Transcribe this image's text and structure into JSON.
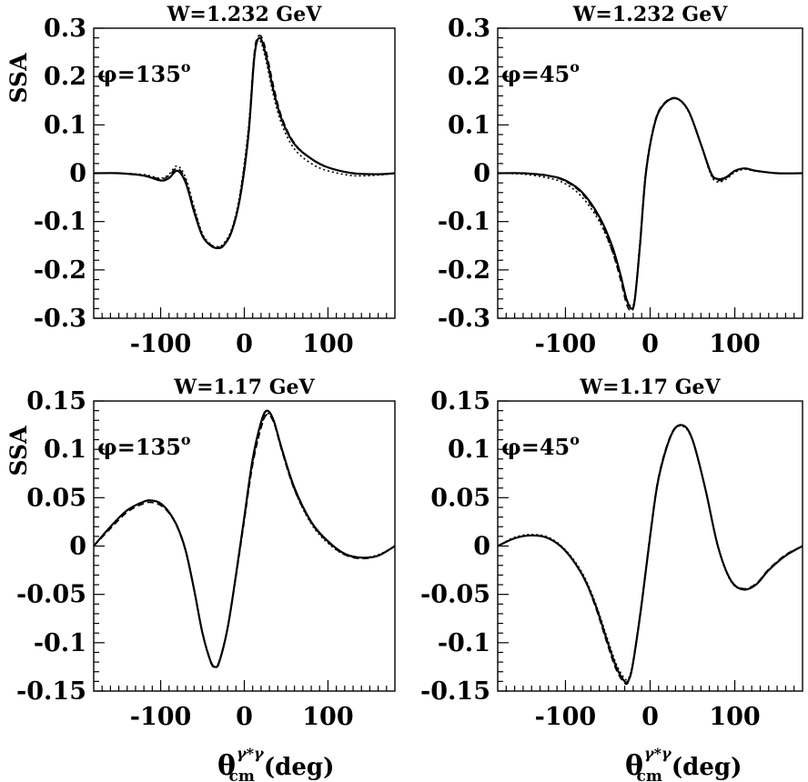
{
  "chart_data": [
    {
      "type": "line",
      "title": "W=1.232 GeV",
      "ylabel": "SSA",
      "xlabel": "",
      "annotation": "φ=135°",
      "xlim": [
        -180,
        180
      ],
      "ylim": [
        -0.3,
        0.3
      ],
      "xticks": [
        -100,
        0,
        100
      ],
      "xtick_labels": [
        "-100",
        "0",
        "100"
      ],
      "yticks": [
        -0.3,
        -0.2,
        -0.1,
        0,
        0.1,
        0.2,
        0.3
      ],
      "ytick_labels": [
        "-0.3",
        "-0.2",
        "-0.1",
        "0",
        "0.1",
        "0.2",
        "0.3"
      ],
      "series": [
        {
          "style": "solid",
          "x": [
            -180,
            -150,
            -120,
            -100,
            -90,
            -80,
            -70,
            -60,
            -50,
            -40,
            -32,
            -25,
            -15,
            -5,
            5,
            12,
            18,
            25,
            35,
            45,
            60,
            80,
            100,
            130,
            160,
            180
          ],
          "y": [
            0.0,
            0.0,
            -0.005,
            -0.015,
            -0.01,
            0.005,
            -0.02,
            -0.08,
            -0.13,
            -0.15,
            -0.155,
            -0.15,
            -0.12,
            -0.05,
            0.08,
            0.24,
            0.28,
            0.25,
            0.17,
            0.11,
            0.06,
            0.03,
            0.012,
            0.0,
            -0.002,
            0.0
          ]
        },
        {
          "style": "dashed",
          "x": [
            -180,
            -150,
            -120,
            -100,
            -90,
            -80,
            -70,
            -60,
            -50,
            -40,
            -32,
            -25,
            -15,
            -5,
            5,
            12,
            18,
            25,
            35,
            45,
            60,
            80,
            100,
            130,
            160,
            180
          ],
          "y": [
            0.0,
            0.0,
            -0.004,
            -0.012,
            -0.005,
            0.01,
            -0.015,
            -0.075,
            -0.128,
            -0.148,
            -0.153,
            -0.148,
            -0.118,
            -0.045,
            0.09,
            0.25,
            0.285,
            0.26,
            0.18,
            0.115,
            0.062,
            0.03,
            0.012,
            0.0,
            -0.002,
            0.0
          ]
        },
        {
          "style": "dotted",
          "x": [
            -180,
            -150,
            -120,
            -100,
            -90,
            -80,
            -70,
            -60,
            -50,
            -40,
            -32,
            -25,
            -15,
            -5,
            5,
            12,
            18,
            25,
            35,
            45,
            60,
            80,
            100,
            130,
            160,
            180
          ],
          "y": [
            0.0,
            0.0,
            -0.003,
            -0.01,
            -0.002,
            0.015,
            -0.01,
            -0.07,
            -0.125,
            -0.147,
            -0.152,
            -0.146,
            -0.115,
            -0.04,
            0.095,
            0.245,
            0.275,
            0.24,
            0.16,
            0.1,
            0.05,
            0.02,
            0.005,
            -0.005,
            -0.004,
            0.0
          ]
        }
      ]
    },
    {
      "type": "line",
      "title": "W=1.232 GeV",
      "ylabel": "",
      "xlabel": "",
      "annotation": "φ=45°",
      "xlim": [
        -180,
        180
      ],
      "ylim": [
        -0.3,
        0.3
      ],
      "xticks": [
        -100,
        0,
        100
      ],
      "xtick_labels": [
        "-100",
        "0",
        "100"
      ],
      "yticks": [
        -0.3,
        -0.2,
        -0.1,
        0,
        0.1,
        0.2,
        0.3
      ],
      "ytick_labels": [
        "-0.3",
        "-0.2",
        "-0.1",
        "0",
        "0.1",
        "0.2",
        "0.3"
      ],
      "series": [
        {
          "style": "solid",
          "x": [
            -180,
            -150,
            -120,
            -100,
            -80,
            -60,
            -45,
            -35,
            -28,
            -22,
            -18,
            -12,
            -5,
            5,
            15,
            30,
            45,
            60,
            72,
            80,
            90,
            100,
            112,
            125,
            150,
            180
          ],
          "y": [
            0.0,
            0.0,
            -0.005,
            -0.015,
            -0.04,
            -0.09,
            -0.15,
            -0.21,
            -0.26,
            -0.28,
            -0.26,
            -0.15,
            0.0,
            0.1,
            0.14,
            0.155,
            0.13,
            0.06,
            0.0,
            -0.012,
            -0.008,
            0.005,
            0.01,
            0.005,
            0.0,
            0.0
          ]
        },
        {
          "style": "dashed",
          "x": [
            -180,
            -150,
            -120,
            -100,
            -80,
            -60,
            -45,
            -35,
            -28,
            -22,
            -18,
            -12,
            -5,
            5,
            15,
            30,
            45,
            60,
            72,
            80,
            90,
            100,
            112,
            125,
            150,
            180
          ],
          "y": [
            0.0,
            0.0,
            -0.006,
            -0.017,
            -0.043,
            -0.095,
            -0.16,
            -0.22,
            -0.27,
            -0.285,
            -0.26,
            -0.145,
            0.005,
            0.103,
            0.142,
            0.156,
            0.13,
            0.06,
            -0.002,
            -0.015,
            -0.01,
            0.004,
            0.01,
            0.005,
            0.0,
            0.0
          ]
        },
        {
          "style": "dotted",
          "x": [
            -180,
            -150,
            -120,
            -100,
            -80,
            -60,
            -45,
            -35,
            -28,
            -22,
            -18,
            -12,
            -5,
            5,
            15,
            30,
            45,
            60,
            72,
            80,
            90,
            100,
            112,
            125,
            150,
            180
          ],
          "y": [
            0.0,
            -0.002,
            -0.01,
            -0.022,
            -0.05,
            -0.1,
            -0.16,
            -0.215,
            -0.26,
            -0.275,
            -0.255,
            -0.14,
            0.005,
            0.1,
            0.14,
            0.155,
            0.128,
            0.058,
            -0.004,
            -0.018,
            -0.012,
            0.002,
            0.008,
            0.004,
            0.0,
            0.0
          ]
        }
      ]
    },
    {
      "type": "line",
      "title": "W=1.17 GeV",
      "ylabel": "SSA",
      "xlabel": "",
      "annotation": "φ=135°",
      "xlim": [
        -180,
        180
      ],
      "ylim": [
        -0.15,
        0.15
      ],
      "xticks": [
        -100,
        0,
        100
      ],
      "xtick_labels": [
        "-100",
        "0",
        "100"
      ],
      "yticks": [
        -0.15,
        -0.1,
        -0.05,
        0,
        0.05,
        0.1,
        0.15
      ],
      "ytick_labels": [
        "-0.15",
        "-0.1",
        "-0.05",
        "0",
        "0.05",
        "0.1",
        "0.15"
      ],
      "series": [
        {
          "style": "solid",
          "x": [
            -180,
            -160,
            -140,
            -120,
            -110,
            -100,
            -90,
            -80,
            -70,
            -60,
            -50,
            -40,
            -35,
            -30,
            -20,
            -10,
            0,
            10,
            20,
            27,
            35,
            45,
            60,
            80,
            100,
            120,
            140,
            160,
            180
          ],
          "y": [
            0.0,
            0.02,
            0.037,
            0.046,
            0.047,
            0.044,
            0.035,
            0.02,
            -0.005,
            -0.045,
            -0.09,
            -0.12,
            -0.125,
            -0.12,
            -0.085,
            -0.03,
            0.03,
            0.09,
            0.128,
            0.14,
            0.13,
            0.1,
            0.06,
            0.025,
            0.005,
            -0.008,
            -0.012,
            -0.01,
            0.0
          ]
        },
        {
          "style": "dashed",
          "x": [
            -180,
            -160,
            -140,
            -120,
            -110,
            -100,
            -90,
            -80,
            -70,
            -60,
            -50,
            -40,
            -35,
            -30,
            -20,
            -10,
            0,
            10,
            20,
            27,
            35,
            45,
            60,
            80,
            100,
            120,
            140,
            160,
            180
          ],
          "y": [
            0.0,
            0.018,
            0.035,
            0.044,
            0.045,
            0.042,
            0.034,
            0.019,
            -0.006,
            -0.046,
            -0.09,
            -0.119,
            -0.124,
            -0.119,
            -0.085,
            -0.032,
            0.026,
            0.084,
            0.122,
            0.136,
            0.128,
            0.098,
            0.058,
            0.024,
            0.004,
            -0.009,
            -0.013,
            -0.01,
            0.0
          ]
        },
        {
          "style": "dotted",
          "x": [
            -180,
            -160,
            -140,
            -120,
            -110,
            -100,
            -90,
            -80,
            -70,
            -60,
            -50,
            -40,
            -35,
            -30,
            -20,
            -10,
            0,
            10,
            20,
            27,
            35,
            45,
            60,
            80,
            100,
            120,
            140,
            160,
            180
          ],
          "y": [
            0.0,
            0.02,
            0.037,
            0.046,
            0.047,
            0.044,
            0.035,
            0.02,
            -0.005,
            -0.045,
            -0.09,
            -0.12,
            -0.125,
            -0.12,
            -0.085,
            -0.031,
            0.028,
            0.086,
            0.124,
            0.137,
            0.129,
            0.099,
            0.058,
            0.023,
            0.003,
            -0.009,
            -0.012,
            -0.009,
            0.0
          ]
        }
      ]
    },
    {
      "type": "line",
      "title": "W=1.17 GeV",
      "ylabel": "",
      "xlabel": "θ_cm^(γ*γ) (deg)",
      "annotation": "φ=45°",
      "xlim": [
        -180,
        180
      ],
      "ylim": [
        -0.15,
        0.15
      ],
      "xticks": [
        -100,
        0,
        100
      ],
      "xtick_labels": [
        "-100",
        "0",
        "100"
      ],
      "yticks": [
        -0.15,
        -0.1,
        -0.05,
        0,
        0.05,
        0.1,
        0.15
      ],
      "ytick_labels": [
        "-0.15",
        "-0.1",
        "-0.05",
        "0",
        "0.05",
        "0.1",
        "0.15"
      ],
      "series": [
        {
          "style": "solid",
          "x": [
            -180,
            -160,
            -140,
            -120,
            -100,
            -80,
            -65,
            -50,
            -40,
            -30,
            -25,
            -20,
            -10,
            0,
            10,
            25,
            38,
            50,
            65,
            80,
            95,
            110,
            125,
            140,
            160,
            180
          ],
          "y": [
            0.0,
            0.008,
            0.011,
            0.008,
            -0.005,
            -0.03,
            -0.06,
            -0.1,
            -0.125,
            -0.14,
            -0.138,
            -0.12,
            -0.06,
            0.01,
            0.07,
            0.115,
            0.125,
            0.11,
            0.06,
            0.0,
            -0.035,
            -0.045,
            -0.04,
            -0.025,
            -0.01,
            0.0
          ]
        },
        {
          "style": "dashed",
          "x": [
            -180,
            -160,
            -140,
            -120,
            -100,
            -80,
            -65,
            -50,
            -40,
            -30,
            -25,
            -20,
            -10,
            0,
            10,
            25,
            38,
            50,
            65,
            80,
            95,
            110,
            125,
            140,
            160,
            180
          ],
          "y": [
            0.0,
            0.008,
            0.011,
            0.008,
            -0.005,
            -0.03,
            -0.062,
            -0.103,
            -0.128,
            -0.142,
            -0.139,
            -0.12,
            -0.058,
            0.012,
            0.072,
            0.116,
            0.125,
            0.11,
            0.06,
            0.0,
            -0.035,
            -0.044,
            -0.039,
            -0.024,
            -0.009,
            0.0
          ]
        },
        {
          "style": "dotted",
          "x": [
            -180,
            -160,
            -140,
            -120,
            -100,
            -80,
            -65,
            -50,
            -40,
            -30,
            -25,
            -20,
            -10,
            0,
            10,
            25,
            38,
            50,
            65,
            80,
            95,
            110,
            125,
            140,
            160,
            180
          ],
          "y": [
            0.0,
            0.009,
            0.012,
            0.009,
            -0.004,
            -0.028,
            -0.058,
            -0.097,
            -0.122,
            -0.137,
            -0.136,
            -0.118,
            -0.058,
            0.011,
            0.071,
            0.115,
            0.124,
            0.109,
            0.059,
            -0.001,
            -0.036,
            -0.045,
            -0.04,
            -0.025,
            -0.01,
            0.0
          ]
        }
      ]
    }
  ],
  "xaxis_label": {
    "symbol": "θ",
    "sup": "γ*γ",
    "sub": "cm",
    "unit": "(deg)"
  }
}
